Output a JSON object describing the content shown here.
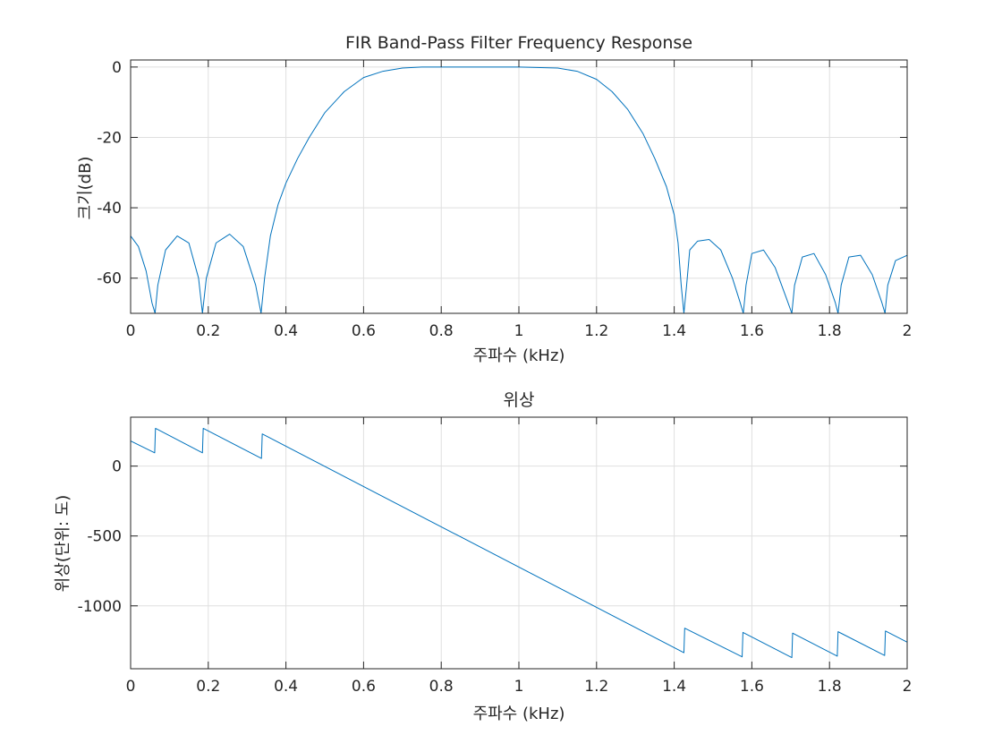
{
  "chart_data": [
    {
      "type": "line",
      "title": "FIR Band-Pass Filter Frequency Response",
      "xlabel": "주파수 (kHz)",
      "ylabel": "크기(dB)",
      "xlim": [
        0,
        2
      ],
      "ylim": [
        -70,
        2
      ],
      "xticks": [
        0,
        0.2,
        0.4,
        0.6,
        0.8,
        1,
        1.2,
        1.4,
        1.6,
        1.8,
        2
      ],
      "xtick_labels": [
        "0",
        "0.2",
        "0.4",
        "0.6",
        "0.8",
        "1",
        "1.2",
        "1.4",
        "1.6",
        "1.8",
        "2"
      ],
      "yticks": [
        0,
        -20,
        -40,
        -60
      ],
      "ytick_labels": [
        "0",
        "-20",
        "-40",
        "-60"
      ],
      "grid": true,
      "color": "#0072BD",
      "series": [
        {
          "x": [
            0,
            0.02,
            0.04,
            0.055,
            0.063,
            0.07,
            0.09,
            0.12,
            0.15,
            0.175,
            0.185,
            0.195,
            0.22,
            0.255,
            0.29,
            0.322,
            0.336,
            0.345,
            0.36,
            0.38,
            0.4,
            0.43,
            0.46,
            0.5,
            0.55,
            0.6,
            0.65,
            0.7,
            0.75,
            0.8,
            0.9,
            1.0,
            1.1,
            1.15,
            1.2,
            1.24,
            1.28,
            1.32,
            1.35,
            1.38,
            1.4,
            1.41,
            1.418,
            1.425,
            1.432,
            1.44,
            1.46,
            1.49,
            1.52,
            1.55,
            1.57,
            1.578,
            1.585,
            1.6,
            1.63,
            1.66,
            1.69,
            1.703,
            1.71,
            1.73,
            1.76,
            1.79,
            1.815,
            1.822,
            1.83,
            1.85,
            1.88,
            1.91,
            1.935,
            1.943,
            1.95,
            1.97,
            2.0
          ],
          "y": [
            -48,
            -51,
            -58,
            -67,
            -72,
            -62,
            -52,
            -48,
            -50,
            -60,
            -72,
            -60,
            -50,
            -47.5,
            -51,
            -62,
            -72,
            -60,
            -48,
            -39,
            -33,
            -26,
            -20,
            -13,
            -7,
            -3,
            -1.2,
            -0.3,
            0,
            0,
            0,
            0,
            -0.3,
            -1.2,
            -3.5,
            -7,
            -12,
            -19,
            -26,
            -34,
            -42,
            -50,
            -62,
            -72,
            -62,
            -52,
            -49.5,
            -49,
            -52,
            -60,
            -67,
            -72,
            -62,
            -53,
            -52,
            -57,
            -66,
            -72,
            -62,
            -54,
            -53,
            -59,
            -67,
            -72,
            -62,
            -54,
            -53.5,
            -59,
            -67,
            -72,
            -62,
            -55,
            -53.5
          ]
        }
      ]
    },
    {
      "type": "line",
      "title": "위상",
      "xlabel": "주파수 (kHz)",
      "ylabel": "위상(단위: 도)",
      "xlim": [
        0,
        2
      ],
      "ylim": [
        -1450,
        350
      ],
      "xticks": [
        0,
        0.2,
        0.4,
        0.6,
        0.8,
        1,
        1.2,
        1.4,
        1.6,
        1.8,
        2
      ],
      "xtick_labels": [
        "0",
        "0.2",
        "0.4",
        "0.6",
        "0.8",
        "1",
        "1.2",
        "1.4",
        "1.6",
        "1.8",
        "2"
      ],
      "yticks": [
        0,
        -500,
        -1000
      ],
      "ytick_labels": [
        "0",
        "-500",
        "-1000"
      ],
      "grid": true,
      "color": "#0072BD",
      "series": [
        {
          "x": [
            0,
            0.062,
            0.064,
            0.185,
            0.187,
            0.337,
            0.339,
            1.425,
            1.427,
            1.575,
            1.577,
            1.703,
            1.705,
            1.82,
            1.822,
            1.942,
            1.944,
            2.0
          ],
          "y": [
            180,
            95,
            270,
            95,
            270,
            55,
            230,
            -1335,
            -1160,
            -1365,
            -1190,
            -1370,
            -1195,
            -1360,
            -1185,
            -1355,
            -1180,
            -1260
          ]
        }
      ]
    }
  ]
}
